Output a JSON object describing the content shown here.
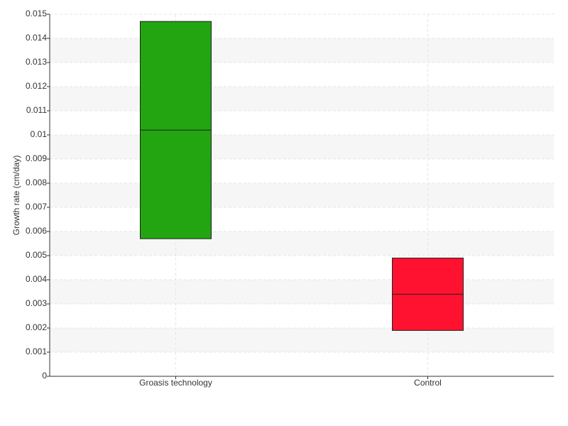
{
  "chart_data": {
    "type": "box",
    "y_label": "Growth rate (cm/day)",
    "categories": [
      "Groasis technology",
      "Control"
    ],
    "boxes": [
      {
        "low": 0.0057,
        "median": 0.0102,
        "high": 0.0147,
        "color": "#22a511"
      },
      {
        "low": 0.0019,
        "median": 0.0034,
        "high": 0.0049,
        "color": "#ff1230"
      }
    ],
    "ylim": [
      0,
      0.015
    ],
    "yticks": [
      0,
      0.001,
      0.002,
      0.003,
      0.004,
      0.005,
      0.006,
      0.007,
      0.008,
      0.009,
      0.01,
      0.011,
      0.012,
      0.013,
      0.014,
      0.015
    ],
    "grid": true
  }
}
